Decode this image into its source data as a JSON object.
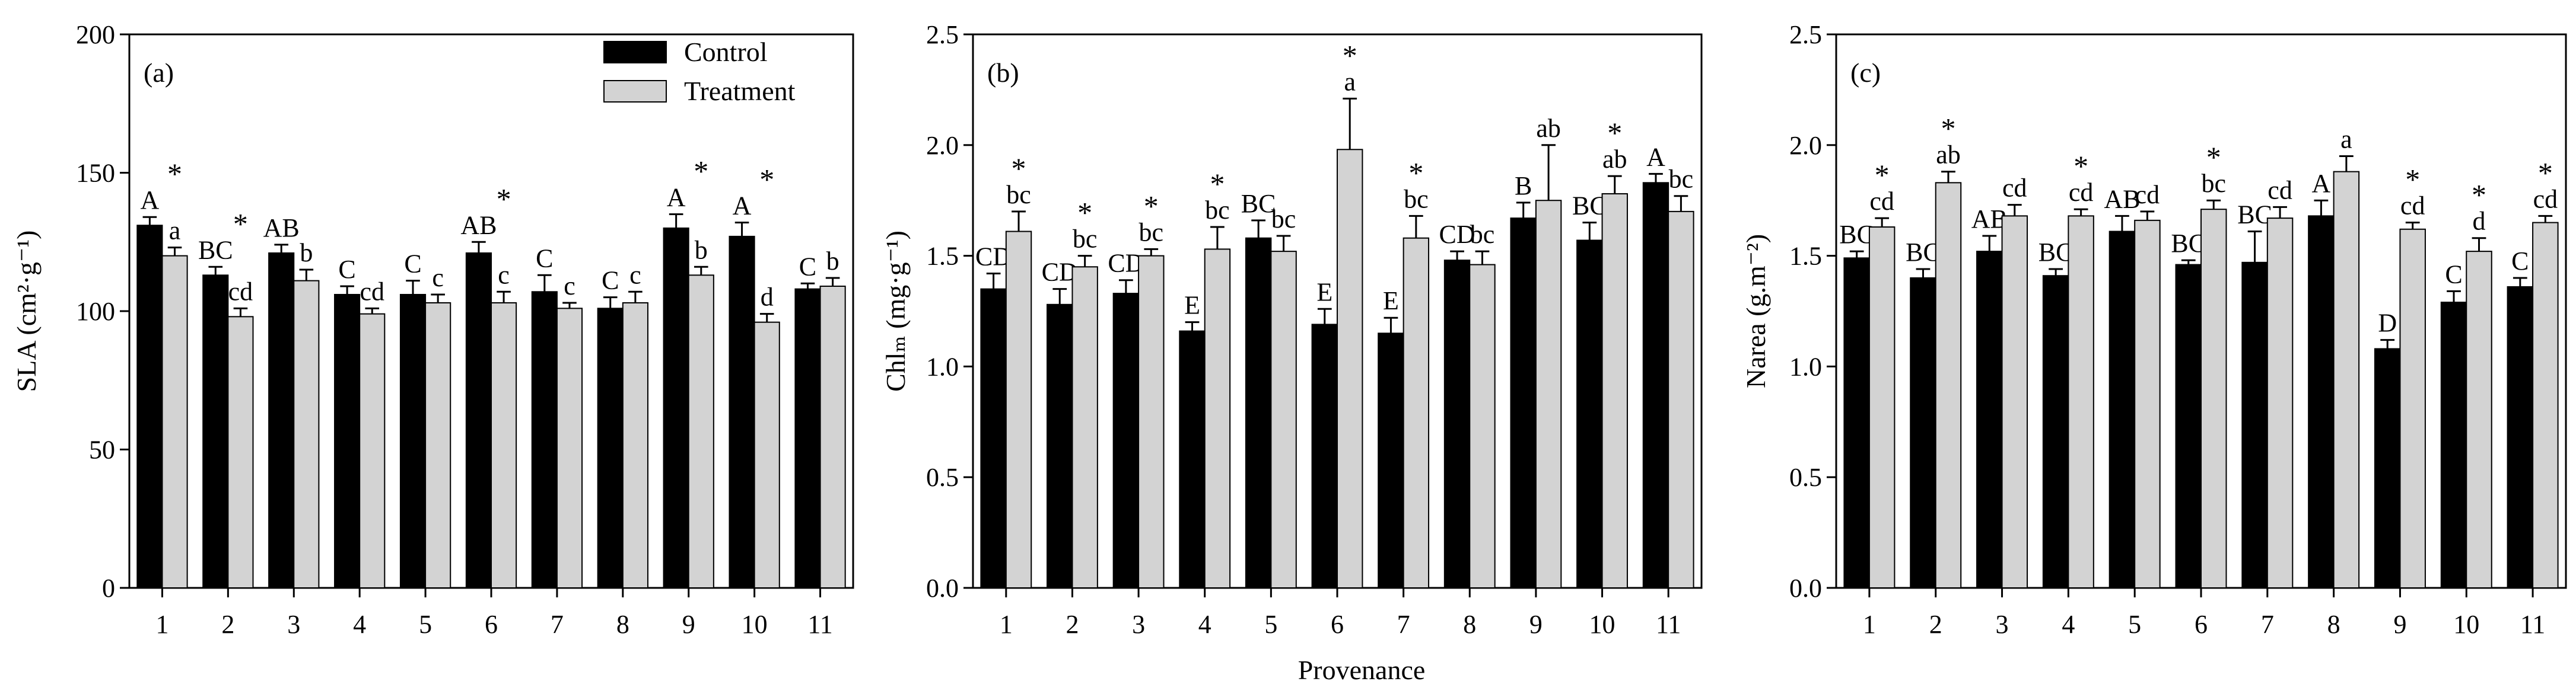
{
  "shared_xlabel": "Provenance",
  "legend": [
    {
      "name": "Control",
      "color": "#000000"
    },
    {
      "name": "Treatment",
      "color": "#d3d3d3"
    }
  ],
  "chart_data": [
    {
      "type": "bar",
      "panel_label": "(a)",
      "ylabel": "SLA (cm²·g⁻¹)",
      "ylim": [
        0,
        200
      ],
      "yticks": [
        0,
        50,
        100,
        150,
        200
      ],
      "ytick_labels": [
        "0",
        "50",
        "100",
        "150",
        "200"
      ],
      "categories": [
        "1",
        "2",
        "3",
        "4",
        "5",
        "6",
        "7",
        "8",
        "9",
        "10",
        "11"
      ],
      "series": [
        {
          "name": "Control",
          "values": [
            131,
            113,
            121,
            106,
            106,
            121,
            107,
            101,
            130,
            127,
            108
          ],
          "errors": [
            3,
            3,
            3,
            3,
            5,
            4,
            6,
            4,
            5,
            5,
            2
          ],
          "letters": [
            "A",
            "BC",
            "AB",
            "C",
            "C",
            "AB",
            "C",
            "C",
            "A",
            "A",
            "C"
          ]
        },
        {
          "name": "Treatment",
          "values": [
            120,
            98,
            111,
            99,
            103,
            103,
            101,
            103,
            113,
            96,
            109
          ],
          "errors": [
            3,
            3,
            4,
            2,
            3,
            4,
            2,
            4,
            3,
            3,
            3
          ],
          "letters": [
            "a",
            "cd",
            "b",
            "cd",
            "c",
            "c",
            "c",
            "c",
            "b",
            "d",
            "b"
          ]
        }
      ],
      "stars": [
        true,
        true,
        false,
        false,
        false,
        true,
        false,
        false,
        true,
        true,
        false
      ]
    },
    {
      "type": "bar",
      "panel_label": "(b)",
      "ylabel": "Chlₘ (mg·g⁻¹)",
      "ylim": [
        0,
        2.5
      ],
      "yticks": [
        0,
        0.5,
        1.0,
        1.5,
        2.0,
        2.5
      ],
      "ytick_labels": [
        "0.0",
        "0.5",
        "1.0",
        "1.5",
        "2.0",
        "2.5"
      ],
      "categories": [
        "1",
        "2",
        "3",
        "4",
        "5",
        "6",
        "7",
        "8",
        "9",
        "10",
        "11"
      ],
      "series": [
        {
          "name": "Control",
          "values": [
            1.35,
            1.28,
            1.33,
            1.16,
            1.58,
            1.19,
            1.15,
            1.48,
            1.67,
            1.57,
            1.83
          ],
          "errors": [
            0.07,
            0.07,
            0.06,
            0.04,
            0.08,
            0.07,
            0.07,
            0.04,
            0.07,
            0.08,
            0.04
          ],
          "letters": [
            "CD",
            "CD",
            "CD",
            "E",
            "BC",
            "E",
            "E",
            "CD",
            "B",
            "BC",
            "A"
          ]
        },
        {
          "name": "Treatment",
          "values": [
            1.61,
            1.45,
            1.5,
            1.53,
            1.52,
            1.98,
            1.58,
            1.46,
            1.75,
            1.78,
            1.7
          ],
          "errors": [
            0.09,
            0.05,
            0.03,
            0.1,
            0.07,
            0.23,
            0.1,
            0.06,
            0.25,
            0.08,
            0.07
          ],
          "letters": [
            "bc",
            "bc",
            "bc",
            "bc",
            "bc",
            "a",
            "bc",
            "bc",
            "ab",
            "ab",
            "bc"
          ]
        }
      ],
      "stars": [
        true,
        true,
        true,
        true,
        false,
        true,
        true,
        false,
        false,
        true,
        false
      ]
    },
    {
      "type": "bar",
      "panel_label": "(c)",
      "ylabel": "Narea (g.m⁻²)",
      "ylim": [
        0,
        2.5
      ],
      "yticks": [
        0,
        0.5,
        1.0,
        1.5,
        2.0,
        2.5
      ],
      "ytick_labels": [
        "0.0",
        "0.5",
        "1.0",
        "1.5",
        "2.0",
        "2.5"
      ],
      "categories": [
        "1",
        "2",
        "3",
        "4",
        "5",
        "6",
        "7",
        "8",
        "9",
        "10",
        "11"
      ],
      "series": [
        {
          "name": "Control",
          "values": [
            1.49,
            1.4,
            1.52,
            1.41,
            1.61,
            1.46,
            1.47,
            1.68,
            1.08,
            1.29,
            1.36
          ],
          "errors": [
            0.03,
            0.04,
            0.07,
            0.03,
            0.07,
            0.02,
            0.14,
            0.07,
            0.04,
            0.05,
            0.04
          ],
          "letters": [
            "BC",
            "BC",
            "AB",
            "BC",
            "AB",
            "BC",
            "BC",
            "A",
            "D",
            "C",
            "C"
          ]
        },
        {
          "name": "Treatment",
          "values": [
            1.63,
            1.83,
            1.68,
            1.68,
            1.66,
            1.71,
            1.67,
            1.88,
            1.62,
            1.52,
            1.65
          ],
          "errors": [
            0.04,
            0.05,
            0.05,
            0.03,
            0.04,
            0.04,
            0.05,
            0.07,
            0.03,
            0.06,
            0.03
          ],
          "letters": [
            "cd",
            "ab",
            "cd",
            "cd",
            "cd",
            "bc",
            "cd",
            "a",
            "cd",
            "d",
            "cd"
          ]
        }
      ],
      "stars": [
        true,
        true,
        false,
        true,
        false,
        true,
        false,
        false,
        true,
        true,
        true
      ]
    }
  ]
}
